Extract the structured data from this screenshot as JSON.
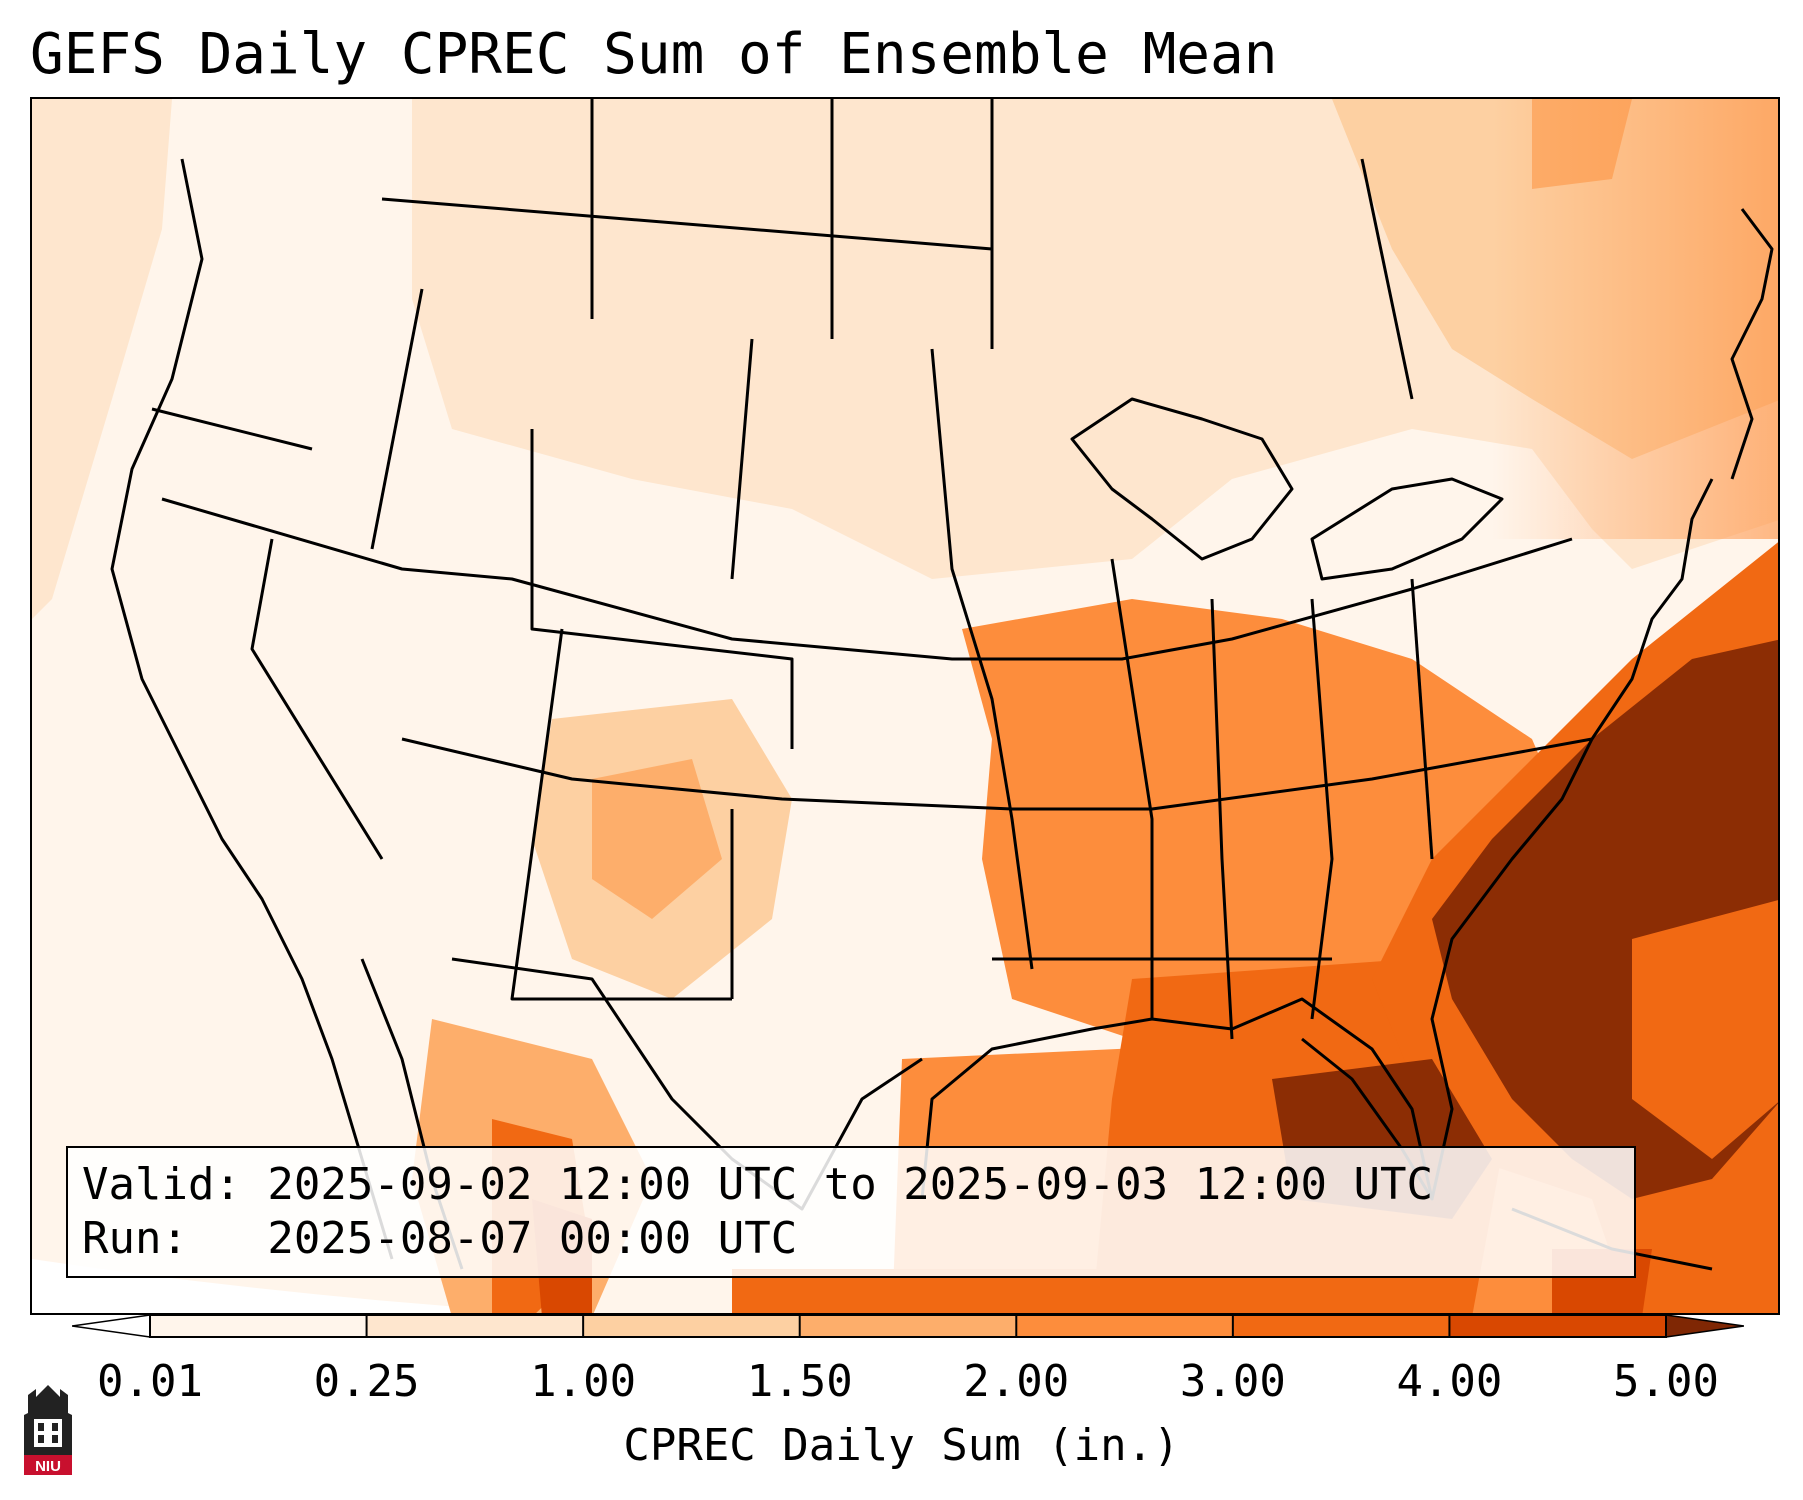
{
  "title": "GEFS Daily CPREC Sum of Ensemble Mean",
  "info": {
    "valid": "Valid: 2025-09-02 12:00 UTC to 2025-09-03 12:00 UTC",
    "run": "Run:   2025-08-07 00:00 UTC"
  },
  "colorbar": {
    "label": "CPREC Daily Sum (in.)",
    "ticks": [
      "0.01",
      "0.25",
      "1.00",
      "1.50",
      "2.00",
      "3.00",
      "4.00",
      "5.00"
    ],
    "colors": [
      "#fff5eb",
      "#fee6ce",
      "#fdd0a2",
      "#fdae6b",
      "#fd8d3c",
      "#f16913",
      "#d94801",
      "#8c2d04"
    ],
    "under_color": "#ffffff",
    "over_color": "#7f2704"
  },
  "logo": {
    "name": "NIU",
    "text": "NIU"
  }
}
